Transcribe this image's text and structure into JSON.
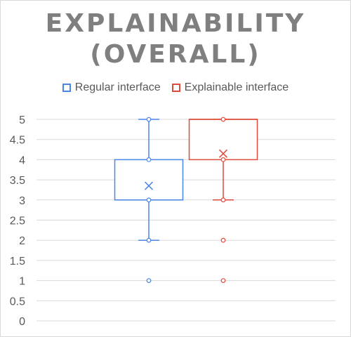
{
  "chart_data": {
    "type": "box",
    "title_lines": [
      "EXPLAINABILITY",
      "(OVERALL)"
    ],
    "xlabel": "",
    "ylabel": "",
    "ylim": [
      0,
      5
    ],
    "yticks": [
      0,
      0.5,
      1,
      1.5,
      2,
      2.5,
      3,
      3.5,
      4,
      4.5,
      5
    ],
    "ytick_labels": [
      "0",
      "0.5",
      "1",
      "1.5",
      "2",
      "2.5",
      "3",
      "3.5",
      "4",
      "4.5",
      "5"
    ],
    "grid": true,
    "legend_position": "top",
    "series": [
      {
        "name": "Regular interface",
        "color": "#4a86e8",
        "whisker_low": 2,
        "q1": 3,
        "median": 3,
        "q3": 4,
        "whisker_high": 5,
        "mean": 3.35,
        "points": [
          1,
          2,
          3,
          4,
          5
        ]
      },
      {
        "name": "Explainable interface",
        "color": "#e04a3c",
        "whisker_low": 3,
        "q1": 4,
        "median": 5,
        "q3": 5,
        "whisker_high": 5,
        "mean": 4.15,
        "points": [
          1,
          2,
          3,
          4,
          5
        ]
      }
    ]
  }
}
